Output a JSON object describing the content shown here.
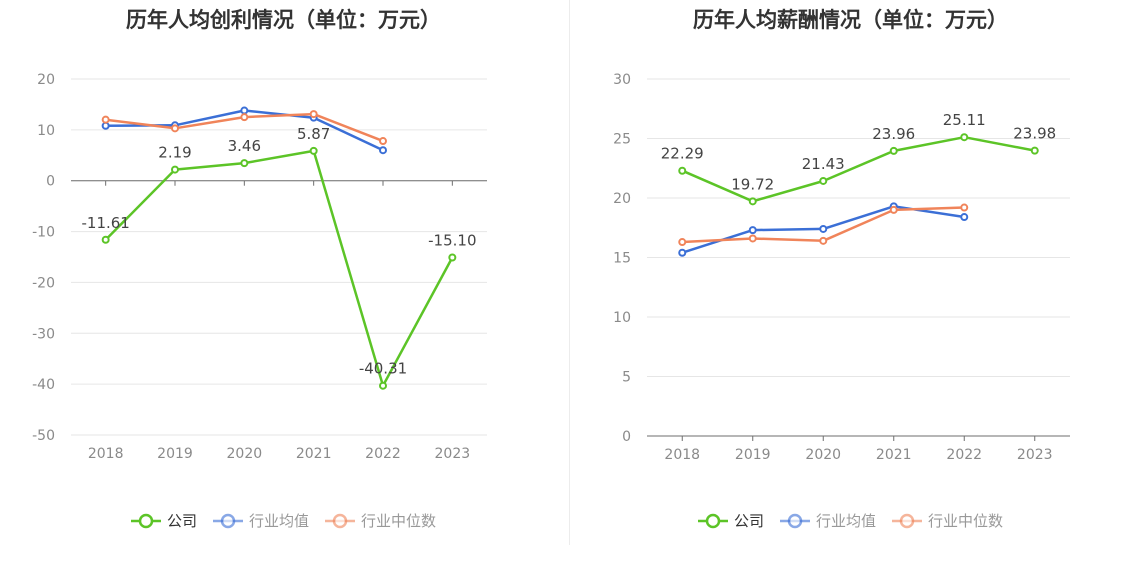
{
  "chart_data": [
    {
      "type": "line",
      "title": "历年人均创利情况（单位：万元）",
      "categories": [
        "2018",
        "2019",
        "2020",
        "2021",
        "2022",
        "2023"
      ],
      "ylim": [
        -50,
        20
      ],
      "yticks": [
        20,
        10,
        0,
        -10,
        -20,
        -30,
        -40,
        -50
      ],
      "series": [
        {
          "name": "公司",
          "color": "#5cc427",
          "values": [
            -11.61,
            2.19,
            3.46,
            5.87,
            -40.31,
            -15.1
          ],
          "labels": [
            "-11.61",
            "2.19",
            "3.46",
            "5.87",
            "-40.31",
            "-15.10"
          ]
        },
        {
          "name": "行业均值",
          "color": "#3b6fd6",
          "values": [
            10.8,
            10.9,
            13.8,
            12.4,
            6.0,
            null
          ]
        },
        {
          "name": "行业中位数",
          "color": "#f0845a",
          "values": [
            12.0,
            10.3,
            12.5,
            13.1,
            7.8,
            null
          ]
        }
      ],
      "grid": true,
      "legend": "bottom-center"
    },
    {
      "type": "line",
      "title": "历年人均薪酬情况（单位：万元）",
      "categories": [
        "2018",
        "2019",
        "2020",
        "2021",
        "2022",
        "2023"
      ],
      "ylim": [
        0,
        30
      ],
      "yticks": [
        30,
        25,
        20,
        15,
        10,
        5,
        0
      ],
      "series": [
        {
          "name": "公司",
          "color": "#5cc427",
          "values": [
            22.29,
            19.72,
            21.43,
            23.96,
            25.11,
            23.98
          ],
          "labels": [
            "22.29",
            "19.72",
            "21.43",
            "23.96",
            "25.11",
            "23.98"
          ]
        },
        {
          "name": "行业均值",
          "color": "#3b6fd6",
          "values": [
            15.4,
            17.3,
            17.4,
            19.3,
            18.4,
            null
          ]
        },
        {
          "name": "行业中位数",
          "color": "#f0845a",
          "values": [
            16.3,
            16.6,
            16.4,
            19.0,
            19.2,
            null
          ]
        }
      ],
      "grid": true,
      "legend": "bottom-center"
    }
  ]
}
